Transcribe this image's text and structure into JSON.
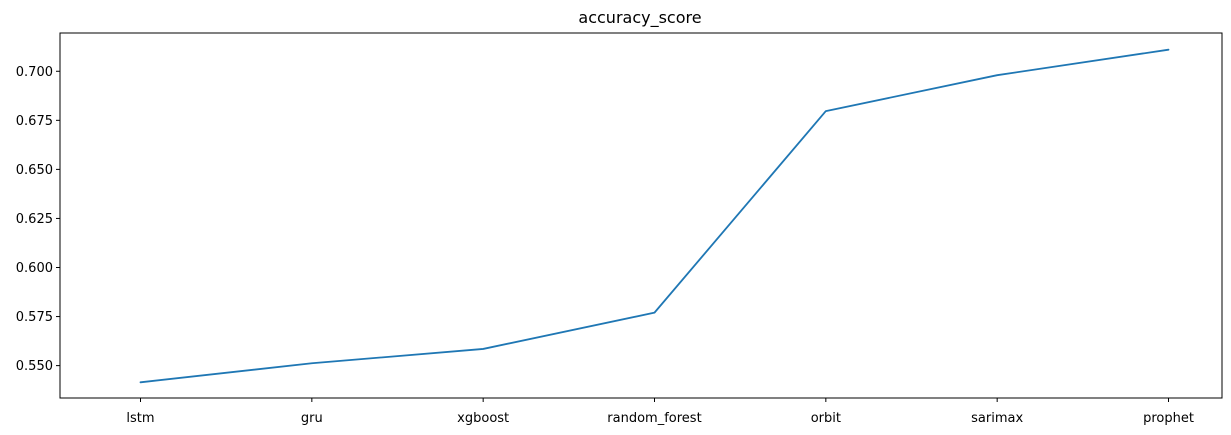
{
  "chart_data": {
    "type": "line",
    "title": "accuracy_score",
    "xlabel": "",
    "ylabel": "",
    "categories": [
      "lstm",
      "gru",
      "xgboost",
      "random_forest",
      "orbit",
      "sarimax",
      "prophet"
    ],
    "series": [
      {
        "values": [
          0.5415,
          0.5512,
          0.5585,
          0.577,
          0.6797,
          0.698,
          0.711
        ],
        "color": "#1f77b4"
      }
    ],
    "ylim": [
      0.5335,
      0.7195
    ],
    "yticks": [
      0.55,
      0.575,
      0.6,
      0.625,
      0.65,
      0.675,
      0.7
    ],
    "ytick_labels": [
      "0.550",
      "0.575",
      "0.600",
      "0.625",
      "0.650",
      "0.675",
      "0.700"
    ],
    "grid": false,
    "legend": "none"
  }
}
